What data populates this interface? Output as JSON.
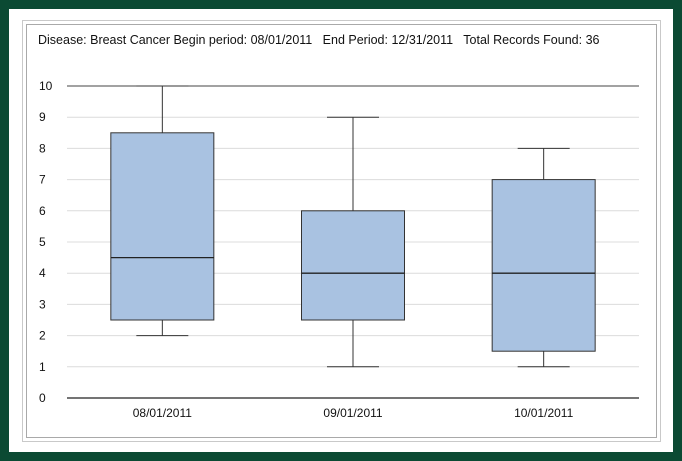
{
  "chart_data": {
    "type": "boxplot",
    "title": "Disease: Breast Cancer Begin period: 08/01/2011   End Period: 12/31/2011   Total Records Found: 36",
    "xlabel": "",
    "ylabel": "",
    "ylim": [
      0,
      10
    ],
    "yticks": [
      0,
      1,
      2,
      3,
      4,
      5,
      6,
      7,
      8,
      9,
      10
    ],
    "grid": true,
    "categories": [
      "08/01/2011",
      "09/01/2011",
      "10/01/2011"
    ],
    "boxes": [
      {
        "min": 2,
        "q1": 2.5,
        "median": 4.5,
        "q3": 8.5,
        "max": 10
      },
      {
        "min": 1,
        "q1": 2.5,
        "median": 4,
        "q3": 6,
        "max": 9
      },
      {
        "min": 1,
        "q1": 1.5,
        "median": 4,
        "q3": 7,
        "max": 8
      }
    ],
    "colors": {
      "box_fill": "#a9c2e1",
      "box_stroke": "#333333",
      "grid": "#dcdcdc",
      "axis": "#222222"
    }
  }
}
